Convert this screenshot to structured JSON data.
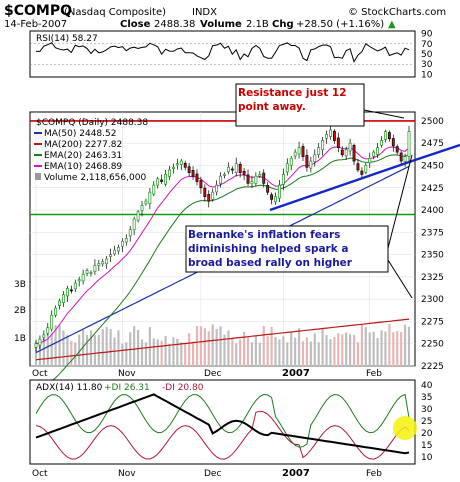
{
  "header": {
    "symbol": "$COMPQ",
    "name": "(Nasdaq Composite)",
    "exchange": "INDX",
    "source": "© StockCharts.com",
    "date": "14-Feb-2007",
    "close_label": "Close",
    "close_value": "2488.38",
    "volume_label": "Volume",
    "volume_value": "2.1B",
    "chg_label": "Chg",
    "chg_value": "+28.50 (+1.16%)",
    "chg_arrow": "▲"
  },
  "x_axis": {
    "labels": [
      "Oct",
      "Nov",
      "Dec",
      "2007",
      "Feb"
    ]
  },
  "rsi_panel": {
    "label": "RSI(14) 58.27",
    "ticks": [
      "90",
      "70",
      "50",
      "30",
      "10"
    ],
    "rsi_value": 58.27
  },
  "price_panel": {
    "title": "$COMPQ (Daily) 2488.38",
    "legend": [
      {
        "text": "MA(50) 2448.52",
        "color": "#1f2fb0",
        "swatch": "line"
      },
      {
        "text": "MA(200) 2277.82",
        "color": "#c01515",
        "swatch": "line"
      },
      {
        "text": "EMA(20) 2463.31",
        "color": "#1f7a1f",
        "swatch": "line"
      },
      {
        "text": "EMA(10) 2468.89",
        "color": "#d414c0",
        "swatch": "line"
      },
      {
        "text": "Volume 2,118,656,000",
        "color": "#999999",
        "swatch": "bar"
      }
    ],
    "y_ticks": [
      "2500",
      "2475",
      "2450",
      "2425",
      "2400",
      "2375",
      "2350",
      "2325",
      "2300",
      "2275",
      "2250",
      "2225"
    ],
    "volume_ticks": [
      "3B",
      "2B",
      "1B"
    ],
    "annotation_resistance": "Resistance just 12 point away.",
    "annotation_bernanke": "Bernanke's inflation fears diminishing helped spark a broad based rally on higher volume.",
    "resistance_level": 2500,
    "support_level": 2395
  },
  "adx_panel": {
    "label_adx": "ADX(14) 11.80",
    "label_pdi": "+DI 26.31",
    "label_mdi": "-DI 20.80",
    "ticks": [
      "40",
      "35",
      "30",
      "25",
      "20",
      "15",
      "10"
    ]
  },
  "colors": {
    "up_candle": "#1a9a1a",
    "down_candle": "#cc1111",
    "resistance": "#cc0000",
    "support": "#119911",
    "trendline": "#1428c8",
    "annotation_text_red": "#cc0000",
    "annotation_text_blue": "#1a1aa0",
    "highlight": "#f2f20a"
  },
  "chart_data": {
    "type": "candlestick",
    "dates": [
      "Oct",
      "",
      "",
      "",
      "",
      "",
      "",
      "",
      "",
      "",
      "",
      "",
      "",
      "",
      "",
      "",
      "",
      "",
      "",
      "",
      "",
      "",
      "Nov",
      "",
      "",
      "",
      "",
      "",
      "",
      "",
      "",
      "",
      "",
      "",
      "",
      "",
      "",
      "",
      "",
      "",
      "",
      "",
      "",
      "Dec",
      "",
      "",
      "",
      "",
      "",
      "",
      "",
      "",
      "",
      "",
      "",
      "",
      "",
      "",
      "",
      "",
      "",
      "",
      "",
      "2007",
      "",
      "",
      "",
      "",
      "",
      "",
      "",
      "",
      "",
      "",
      "",
      "",
      "",
      "",
      "",
      "",
      "",
      "",
      "",
      "",
      "Feb",
      "",
      "",
      "",
      "",
      "",
      "",
      "",
      "",
      ""
    ],
    "closes": [
      2250,
      2255,
      2260,
      2268,
      2282,
      2290,
      2298,
      2305,
      2312,
      2310,
      2318,
      2322,
      2328,
      2332,
      2330,
      2338,
      2340,
      2342,
      2345,
      2350,
      2355,
      2358,
      2365,
      2368,
      2378,
      2390,
      2398,
      2405,
      2410,
      2420,
      2428,
      2435,
      2432,
      2440,
      2445,
      2448,
      2452,
      2455,
      2448,
      2442,
      2438,
      2432,
      2425,
      2415,
      2410,
      2420,
      2428,
      2438,
      2440,
      2448,
      2445,
      2452,
      2442,
      2440,
      2430,
      2432,
      2438,
      2440,
      2430,
      2420,
      2412,
      2415,
      2428,
      2440,
      2452,
      2458,
      2465,
      2470,
      2460,
      2448,
      2455,
      2462,
      2470,
      2478,
      2485,
      2490,
      2478,
      2470,
      2462,
      2468,
      2475,
      2455,
      2445,
      2440,
      2450,
      2458,
      2465,
      2470,
      2478,
      2488,
      2480,
      2472,
      2465,
      2455,
      2460,
      2488
    ],
    "ma50": 2448.52,
    "ma200": 2277.82,
    "ema20": 2463.31,
    "ema10": 2468.89,
    "volume_last": 2118656000,
    "rsi14_last": 58.27,
    "adx14_last": 11.8,
    "pdi_last": 26.31,
    "mdi_last": 20.8
  }
}
